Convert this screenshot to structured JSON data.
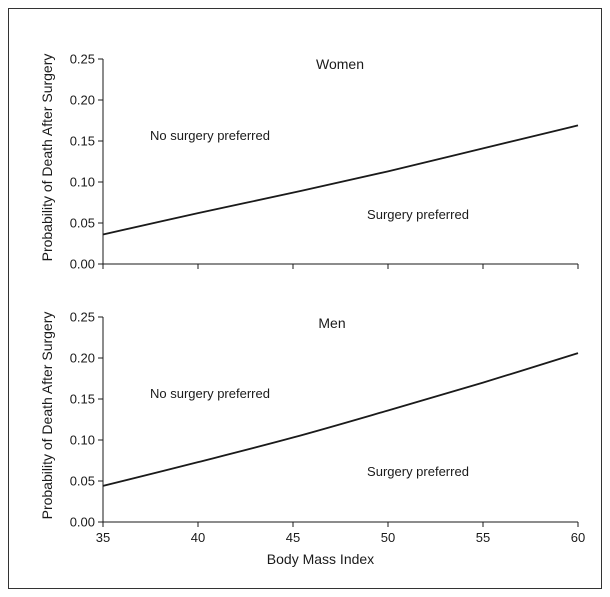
{
  "chart_data": [
    {
      "type": "line",
      "title": "Women",
      "xlabel": "",
      "ylabel": "Probability of Death After Surgery",
      "xlim": [
        35,
        60
      ],
      "ylim": [
        0,
        0.25
      ],
      "x_ticks": [
        35,
        40,
        45,
        50,
        55,
        60
      ],
      "y_ticks": [
        0.0,
        0.05,
        0.1,
        0.15,
        0.2,
        0.25
      ],
      "y_tick_labels": [
        "0.00",
        "0.05",
        "0.10",
        "0.15",
        "0.20",
        "0.25"
      ],
      "show_x_tick_labels": false,
      "grid": false,
      "annotations": [
        {
          "text": "No surgery preferred"
        },
        {
          "text": "Surgery preferred"
        }
      ],
      "series": [
        {
          "x": [
            35,
            40,
            45,
            50,
            55,
            60
          ],
          "y": [
            0.036,
            0.062,
            0.087,
            0.113,
            0.141,
            0.169
          ]
        }
      ]
    },
    {
      "type": "line",
      "title": "Men",
      "xlabel": "Body Mass Index",
      "ylabel": "Probability of Death After Surgery",
      "xlim": [
        35,
        60
      ],
      "ylim": [
        0,
        0.25
      ],
      "x_ticks": [
        35,
        40,
        45,
        50,
        55,
        60
      ],
      "x_tick_labels": [
        "35",
        "40",
        "45",
        "50",
        "55",
        "60"
      ],
      "y_ticks": [
        0.0,
        0.05,
        0.1,
        0.15,
        0.2,
        0.25
      ],
      "y_tick_labels": [
        "0.00",
        "0.05",
        "0.10",
        "0.15",
        "0.20",
        "0.25"
      ],
      "show_x_tick_labels": true,
      "grid": false,
      "annotations": [
        {
          "text": "No surgery preferred"
        },
        {
          "text": "Surgery preferred"
        }
      ],
      "series": [
        {
          "x": [
            35,
            40,
            45,
            50,
            55,
            60
          ],
          "y": [
            0.044,
            0.073,
            0.103,
            0.136,
            0.17,
            0.206
          ]
        }
      ]
    }
  ],
  "colors": {
    "line": "#1a1a1a",
    "axis": "#1a1a1a",
    "text": "#1a1a1a",
    "frame": "#333333",
    "background": "#ffffff"
  }
}
